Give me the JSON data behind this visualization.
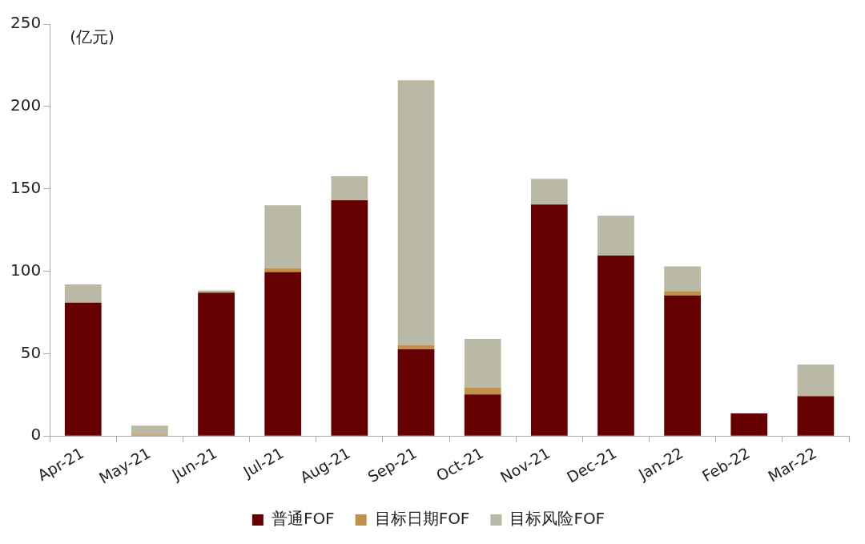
{
  "chart_data": {
    "type": "bar",
    "stacked": true,
    "ylabel": "(亿元)",
    "categories": [
      "Apr-21",
      "May-21",
      "Jun-21",
      "Jul-21",
      "Aug-21",
      "Sep-21",
      "Oct-21",
      "Nov-21",
      "Dec-21",
      "Jan-22",
      "Feb-22",
      "Mar-22"
    ],
    "series": [
      {
        "name": "普通FOF",
        "color": "#660000",
        "values": [
          81,
          0,
          87,
          99.5,
          143,
          52.6,
          25.3,
          140.5,
          109.5,
          85.3,
          13.7,
          24.2
        ]
      },
      {
        "name": "目标日期FOF",
        "color": "#c0904d",
        "values": [
          0,
          1,
          0,
          2.5,
          0,
          2.7,
          4.2,
          0,
          0,
          2.7,
          0,
          0.5
        ]
      },
      {
        "name": "目标风险FOF",
        "color": "#bab9a6",
        "values": [
          11,
          5.3,
          1.4,
          38,
          14.6,
          160.5,
          29.5,
          15.5,
          24.2,
          15,
          0,
          18.7
        ]
      }
    ],
    "ylim": [
      0,
      250
    ],
    "yticks": [
      0,
      50,
      100,
      150,
      200,
      250
    ],
    "grid": false,
    "legend": "bottom"
  }
}
